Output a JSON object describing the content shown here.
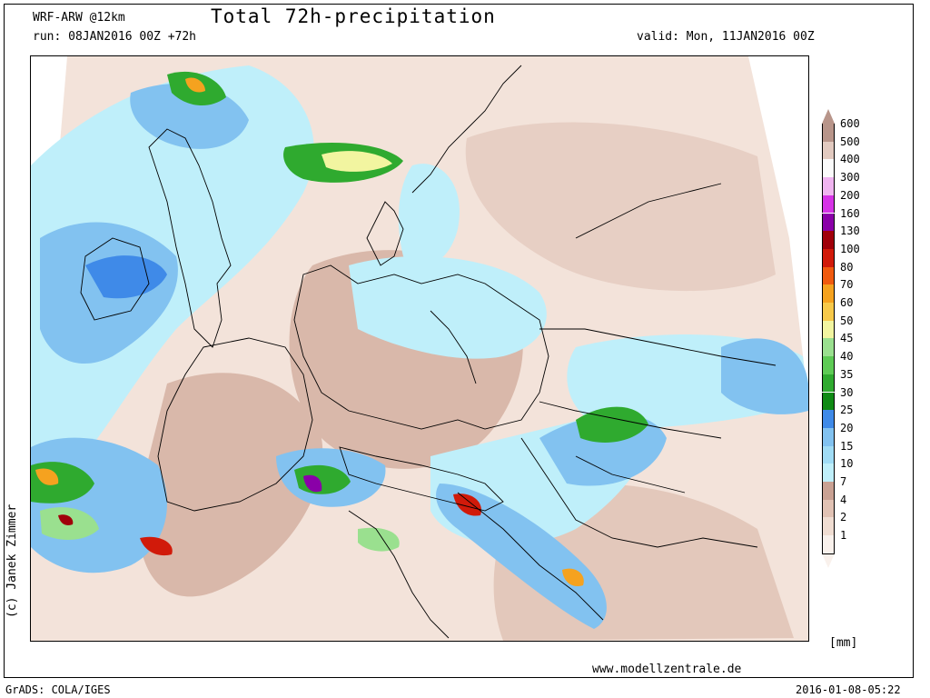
{
  "header": {
    "model": "WRF-ARW @12km",
    "run": "run: 08JAN2016 00Z +72h",
    "title": "Total 72h-precipitation",
    "valid": "valid: Mon, 11JAN2016 00Z"
  },
  "footer": {
    "credit": "(c) Janek Zimmer",
    "website": "www.modellzentrale.de",
    "software": "GrADS: COLA/IGES",
    "timestamp": "2016-01-08-05:22"
  },
  "legend": {
    "unit": "[mm]",
    "bins": [
      {
        "label": "1",
        "color": "#f9f1ec"
      },
      {
        "label": "2",
        "color": "#f0ddd2"
      },
      {
        "label": "4",
        "color": "#e1c2b4"
      },
      {
        "label": "7",
        "color": "#c9a193"
      },
      {
        "label": "10",
        "color": "#bfeffa"
      },
      {
        "label": "15",
        "color": "#a0dcf5"
      },
      {
        "label": "20",
        "color": "#82c2f0"
      },
      {
        "label": "25",
        "color": "#3f8ae8"
      },
      {
        "label": "30",
        "color": "#0f8a14"
      },
      {
        "label": "35",
        "color": "#2faa2f"
      },
      {
        "label": "40",
        "color": "#5ecb55"
      },
      {
        "label": "45",
        "color": "#9ae08f"
      },
      {
        "label": "50",
        "color": "#f2f5a0"
      },
      {
        "label": "60",
        "color": "#f7c94a"
      },
      {
        "label": "70",
        "color": "#f5a21f"
      },
      {
        "label": "80",
        "color": "#f05a0f"
      },
      {
        "label": "100",
        "color": "#d11a0a"
      },
      {
        "label": "130",
        "color": "#a0000a"
      },
      {
        "label": "160",
        "color": "#8a00a8"
      },
      {
        "label": "200",
        "color": "#d633e6"
      },
      {
        "label": "300",
        "color": "#f0b4f0"
      },
      {
        "label": "400",
        "color": "#fbfbfb"
      },
      {
        "label": "500",
        "color": "#e2cac0"
      },
      {
        "label": "600",
        "color": "#b8958a"
      }
    ]
  },
  "map": {
    "colors": {
      "light": "#f0ddd2",
      "tan": "#d9b8aa",
      "brown": "#c09a8c",
      "cyan": "#bfeffa",
      "blue": "#82c2f0",
      "deepblue": "#3f8ae8",
      "green": "#2faa2f",
      "lightgreen": "#9ae08f",
      "yellow": "#f2f5a0",
      "orange": "#f5a21f",
      "red": "#d11a0a",
      "purple": "#8a00a8"
    }
  }
}
